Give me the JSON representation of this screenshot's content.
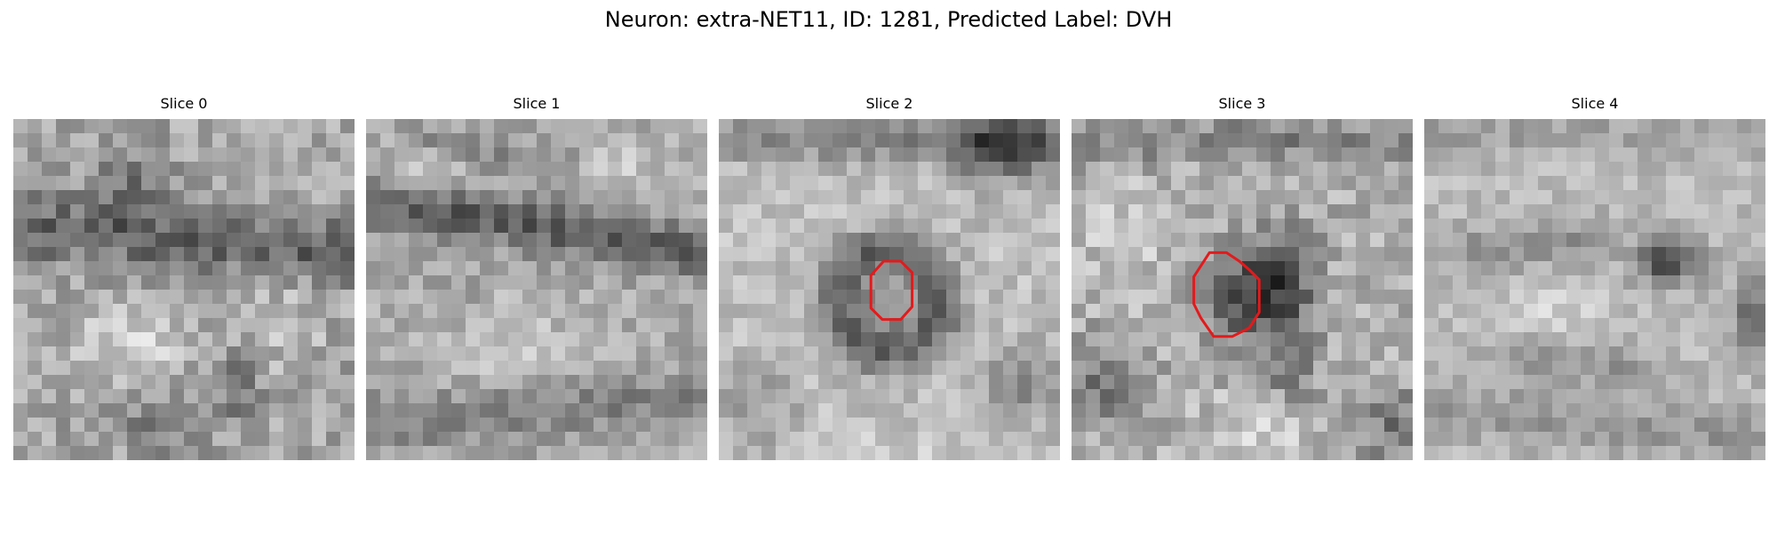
{
  "figure": {
    "title": "Neuron: extra-NET11, ID: 1281, Predicted Label: DVH",
    "colormap": "grayscale",
    "contour_color": "#e31a1c"
  },
  "slices": [
    {
      "label": "Slice 0",
      "has_contour": false
    },
    {
      "label": "Slice 1",
      "has_contour": false
    },
    {
      "label": "Slice 2",
      "has_contour": true
    },
    {
      "label": "Slice 3",
      "has_contour": true
    },
    {
      "label": "Slice 4",
      "has_contour": false
    }
  ]
}
